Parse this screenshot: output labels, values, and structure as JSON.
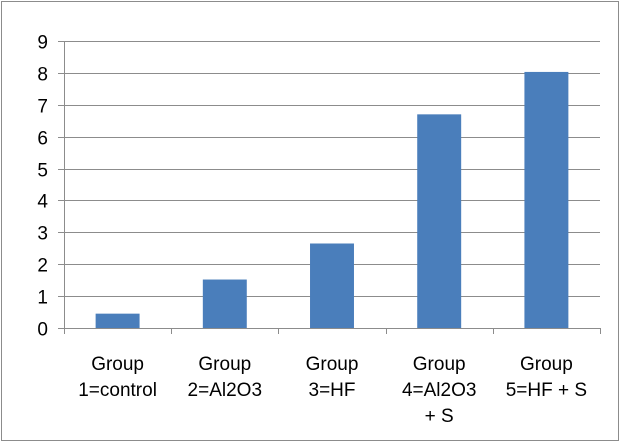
{
  "chart_data": {
    "type": "bar",
    "categories": [
      [
        "Group",
        "1=control"
      ],
      [
        "Group",
        "2=Al2O3"
      ],
      [
        "Group",
        "3=HF"
      ],
      [
        "Group",
        "4=Al2O3",
        "+ S"
      ],
      [
        "Group",
        "5=HF + S"
      ]
    ],
    "values": [
      0.45,
      1.52,
      2.65,
      6.7,
      8.03
    ],
    "title": "",
    "xlabel": "",
    "ylabel": "",
    "ylim": [
      0,
      9
    ],
    "yticks": [
      0,
      1,
      2,
      3,
      4,
      5,
      6,
      7,
      8,
      9
    ],
    "grid": true,
    "legend": "none",
    "colors": {
      "bar": "#4a7ebb",
      "grid": "#8c8c8c",
      "axis": "#8c8c8c",
      "text": "#000000"
    }
  }
}
